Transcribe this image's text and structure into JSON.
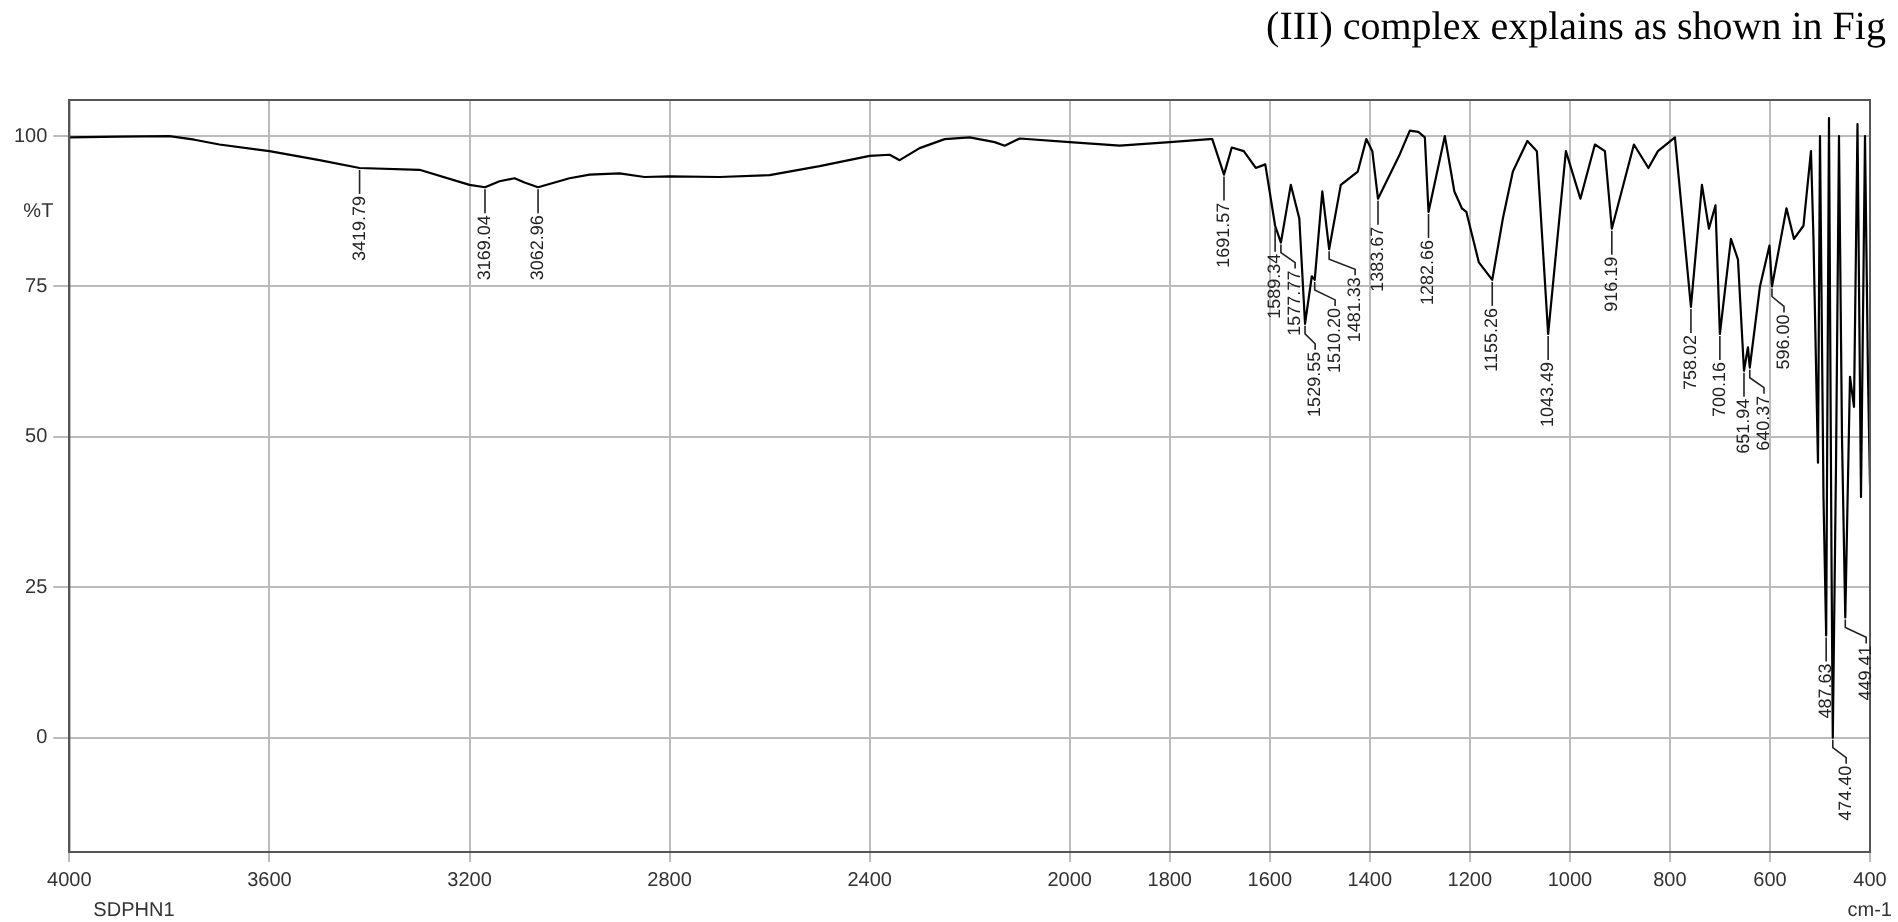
{
  "chart_data": {
    "type": "line",
    "xlabel": "cm-1",
    "ylabel": "%T",
    "x": [
      4000,
      3900,
      3800,
      3750,
      3700,
      3600,
      3500,
      3419.79,
      3300,
      3200,
      3169.04,
      3140,
      3110,
      3090,
      3062.96,
      3000,
      2960,
      2900,
      2850,
      2800,
      2700,
      2600,
      2500,
      2400,
      2360,
      2340,
      2300,
      2250,
      2200,
      2150,
      2130,
      2100,
      2000,
      1900,
      1800,
      1720,
      1715,
      1691.57,
      1676,
      1652,
      1628,
      1609,
      1589.34,
      1577.77,
      1558,
      1541,
      1529.55,
      1516,
      1510.2,
      1495,
      1481.33,
      1458,
      1424,
      1407,
      1395,
      1383.67,
      1340,
      1320,
      1303,
      1290,
      1282.66,
      1250,
      1231,
      1216,
      1207,
      1182,
      1155.26,
      1134,
      1114,
      1085,
      1066,
      1043.49,
      1008,
      979,
      950,
      930,
      916.19,
      872,
      843,
      824,
      790,
      758.02,
      736,
      722,
      709,
      700.16,
      678,
      664,
      651.94,
      644,
      640.37,
      620,
      601,
      596,
      567,
      552,
      533,
      518,
      513,
      504,
      500,
      493,
      487.63,
      482,
      477,
      474.4,
      468,
      462,
      456,
      449.41,
      440,
      432,
      425,
      418,
      410,
      404,
      400
    ],
    "series": [
      {
        "color": "#000000",
        "values": [
          99.8,
          99.9,
          100,
          99.4,
          98.6,
          97.5,
          96,
          94.7,
          94.4,
          91.9,
          91.5,
          92.5,
          93,
          92.3,
          91.5,
          93,
          93.6,
          93.8,
          93.2,
          93.3,
          93.2,
          93.5,
          95,
          96.7,
          96.9,
          96,
          98,
          99.5,
          99.8,
          99,
          98.4,
          99.6,
          99,
          98.4,
          99,
          99.5,
          99.5,
          93.6,
          98.1,
          97.5,
          94.7,
          95.3,
          85.1,
          82.3,
          91.9,
          86.3,
          68.8,
          76.7,
          76.1,
          90.8,
          81.2,
          91.9,
          94.1,
          99.5,
          97.5,
          89.6,
          97,
          100.9,
          100.7,
          99.8,
          87.4,
          100,
          90.8,
          88,
          87.4,
          79,
          76.1,
          86.3,
          94.1,
          99.2,
          97.5,
          67.1,
          97.5,
          89.6,
          98.6,
          97.5,
          84.6,
          98.6,
          94.7,
          97.5,
          99.8,
          71.6,
          91.9,
          84.6,
          88.5,
          67.1,
          82.9,
          79.5,
          61,
          64.9,
          61.5,
          75,
          81.8,
          75,
          88,
          82.9,
          85.1,
          97.5,
          82.9,
          45.7,
          100,
          40,
          17,
          103,
          30,
          0,
          45,
          100,
          50,
          20,
          60,
          55,
          102,
          40,
          100,
          60,
          42
        ]
      }
    ],
    "xlim": [
      4000,
      400
    ],
    "xticks": [
      4000,
      3600,
      3200,
      2800,
      2400,
      2000,
      1800,
      1600,
      1400,
      1200,
      1000,
      800,
      600,
      400
    ],
    "ylim": [
      -19,
      106
    ],
    "yticks": [
      0,
      25,
      50,
      75,
      100
    ],
    "grid": true,
    "legend": false,
    "marker": "none",
    "line_style": "solid",
    "annotations": [
      "(III) complex explains as shown in Fig",
      "SDPHN1",
      {
        "text": "3419.79",
        "x": 3419.79,
        "y": 94.7
      },
      {
        "text": "3169.04",
        "x": 3169.04,
        "y": 91.5
      },
      {
        "text": "3062.96",
        "x": 3062.96,
        "y": 91.5
      },
      {
        "text": "1691.57",
        "x": 1691.57,
        "y": 93.6
      },
      {
        "text": "1589.34",
        "x": 1589.34,
        "y": 85.1
      },
      {
        "text": "1577.77",
        "x": 1577.77,
        "y": 82.3
      },
      {
        "text": "1529.55",
        "x": 1529.55,
        "y": 68.8
      },
      {
        "text": "1510.20",
        "x": 1510.2,
        "y": 76.1
      },
      {
        "text": "1481.33",
        "x": 1481.33,
        "y": 81.2
      },
      {
        "text": "1383.67",
        "x": 1383.67,
        "y": 89.6
      },
      {
        "text": "1282.66",
        "x": 1282.66,
        "y": 87.4
      },
      {
        "text": "1155.26",
        "x": 1155.26,
        "y": 76.1
      },
      {
        "text": "1043.49",
        "x": 1043.49,
        "y": 67.1
      },
      {
        "text": "916.19",
        "x": 916.19,
        "y": 84.6
      },
      {
        "text": "758.02",
        "x": 758.02,
        "y": 71.6
      },
      {
        "text": "700.16",
        "x": 700.16,
        "y": 67.1
      },
      {
        "text": "651.94",
        "x": 651.94,
        "y": 61
      },
      {
        "text": "640.37",
        "x": 640.37,
        "y": 61.5
      },
      {
        "text": "596.00",
        "x": 596,
        "y": 75
      },
      {
        "text": "487.63",
        "x": 487.63,
        "y": 17
      },
      {
        "text": "474.40",
        "x": 474.4,
        "y": 0
      },
      {
        "text": "449.41",
        "x": 449.41,
        "y": 20
      }
    ]
  }
}
